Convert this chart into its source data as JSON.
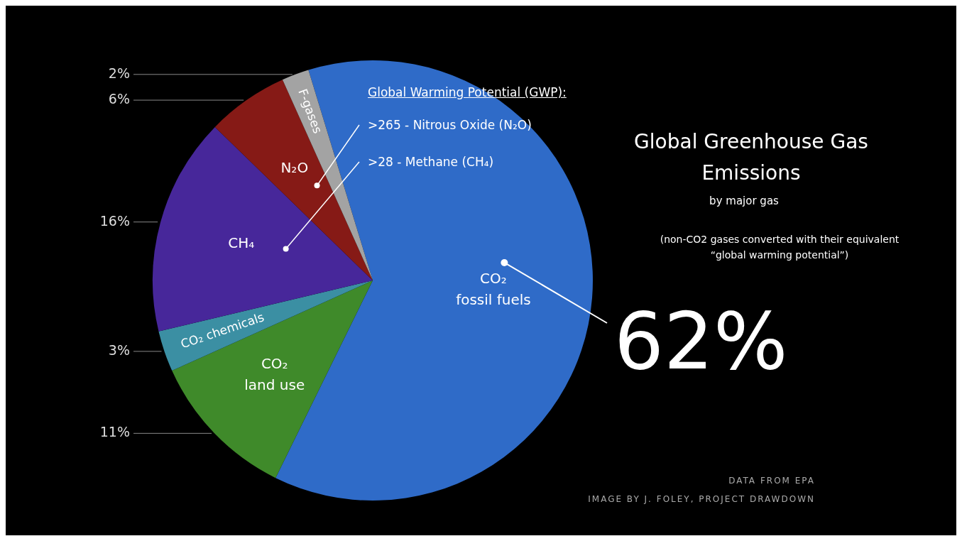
{
  "chart_data": {
    "type": "pie",
    "title": "Global Greenhouse Gas Emissions",
    "subtitle": "by major gas",
    "categories": [
      "CO₂ fossil fuels",
      "CO₂ land use",
      "CO₂ chemicals",
      "CH₄",
      "N₂O",
      "F-gases"
    ],
    "values": [
      62,
      11,
      3,
      16,
      6,
      2
    ],
    "colors": [
      "#2f6bc8",
      "#3f8a2a",
      "#3b8fa3",
      "#47279a",
      "#861a16",
      "#a3a3a3"
    ],
    "value_labels": [
      "62%",
      "11%",
      "3%",
      "16%",
      "6%",
      "2%"
    ],
    "legend": false,
    "annotations": [
      "Global Warming Potential (GWP):",
      ">265 - Nitrous Oxide (N₂O)",
      ">28 - Methane (CH₄)",
      "(non-CO2 gases converted with their equivalent “global warming potential”)",
      "DATA FROM EPA",
      "IMAGE BY J. FOLEY, PROJECT DRAWDOWN"
    ]
  }
}
